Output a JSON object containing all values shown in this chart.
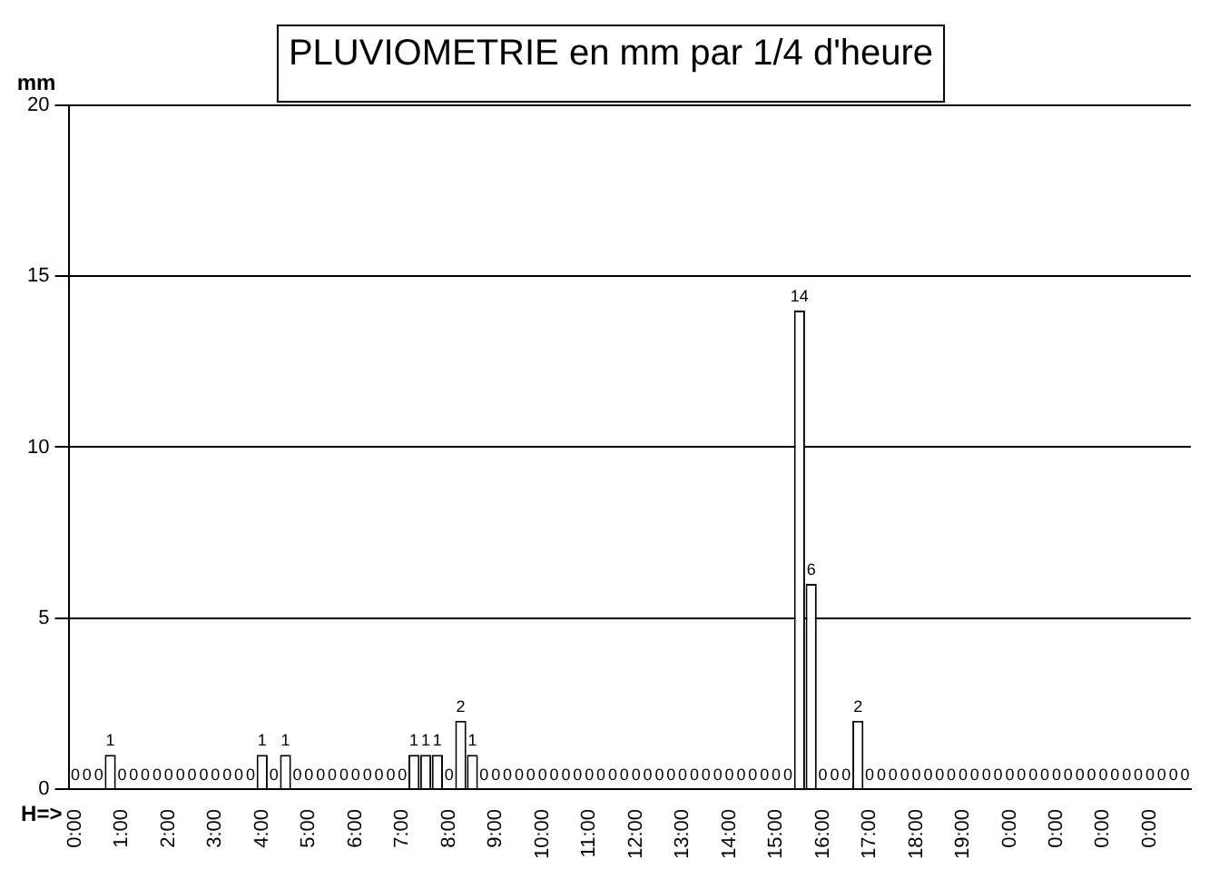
{
  "chart_data": {
    "type": "bar",
    "title": "PLUVIOMETRIE en mm par 1/4 d'heure",
    "ylabel": "mm",
    "xlabel": "H=>",
    "categories": [
      "0:00",
      null,
      null,
      null,
      "1:00",
      null,
      null,
      null,
      "2:00",
      null,
      null,
      null,
      "3:00",
      null,
      null,
      null,
      "4:00",
      null,
      null,
      null,
      "5:00",
      null,
      null,
      null,
      "6:00",
      null,
      null,
      null,
      "7:00",
      null,
      null,
      null,
      "8:00",
      null,
      null,
      null,
      "9:00",
      null,
      null,
      null,
      "10:00",
      null,
      null,
      null,
      "11:00",
      null,
      null,
      null,
      "12:00",
      null,
      null,
      null,
      "13:00",
      null,
      null,
      null,
      "14:00",
      null,
      null,
      null,
      "15:00",
      null,
      null,
      null,
      "16:00",
      null,
      null,
      null,
      "17:00",
      null,
      null,
      null,
      "18:00",
      null,
      null,
      null,
      "19:00",
      null,
      null,
      null,
      "0:00",
      null,
      null,
      null,
      "0:00",
      null,
      null,
      null,
      "0:00",
      null,
      null,
      null,
      "0:00",
      null,
      null,
      null
    ],
    "values": [
      0,
      0,
      0,
      1,
      0,
      0,
      0,
      0,
      0,
      0,
      0,
      0,
      0,
      0,
      0,
      0,
      1,
      0,
      1,
      0,
      0,
      0,
      0,
      0,
      0,
      0,
      0,
      0,
      0,
      1,
      1,
      1,
      0,
      2,
      1,
      0,
      0,
      0,
      0,
      0,
      0,
      0,
      0,
      0,
      0,
      0,
      0,
      0,
      0,
      0,
      0,
      0,
      0,
      0,
      0,
      0,
      0,
      0,
      0,
      0,
      0,
      0,
      14,
      6,
      0,
      0,
      0,
      2,
      0,
      0,
      0,
      0,
      0,
      0,
      0,
      0,
      0,
      0,
      0,
      0,
      0,
      0,
      0,
      0,
      0,
      0,
      0,
      0,
      0,
      0,
      0,
      0,
      0,
      0,
      0,
      0
    ],
    "color": "#ffffff",
    "ylim": [
      0,
      20
    ],
    "yticks": [
      0,
      5,
      10,
      15,
      20
    ],
    "grid": "y",
    "data_labels": true,
    "legend": false
  }
}
